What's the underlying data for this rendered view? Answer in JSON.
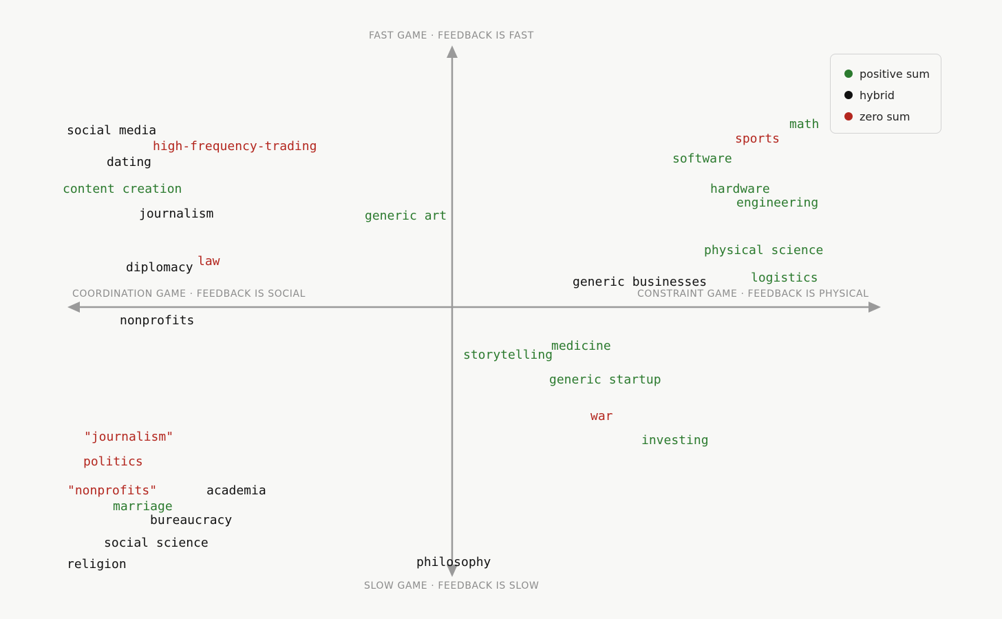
{
  "colors": {
    "positive": "#2b7a2e",
    "hybrid": "#111111",
    "zero": "#b3261e",
    "axis": "#9a9a9a"
  },
  "axes": {
    "top": "FAST GAME · FEEDBACK IS FAST",
    "bottom": "SLOW GAME · FEEDBACK IS SLOW",
    "left": "COORDINATION GAME · FEEDBACK IS SOCIAL",
    "right": "CONSTRAINT GAME · FEEDBACK IS PHYSICAL"
  },
  "legend": {
    "positive": "positive sum",
    "hybrid": "hybrid",
    "zero": "zero sum"
  },
  "chart_data": {
    "type": "scatter",
    "items": [
      {
        "label": "social media",
        "kind": "hybrid"
      },
      {
        "label": "high-frequency-trading",
        "kind": "zero"
      },
      {
        "label": "dating",
        "kind": "hybrid"
      },
      {
        "label": "content creation",
        "kind": "positive"
      },
      {
        "label": "journalism",
        "kind": "hybrid"
      },
      {
        "label": "diplomacy",
        "kind": "hybrid"
      },
      {
        "label": "law",
        "kind": "zero"
      },
      {
        "label": "nonprofits",
        "kind": "hybrid"
      },
      {
        "label": "generic art",
        "kind": "positive"
      },
      {
        "label": "math",
        "kind": "positive"
      },
      {
        "label": "sports",
        "kind": "zero"
      },
      {
        "label": "software",
        "kind": "positive"
      },
      {
        "label": "hardware",
        "kind": "positive"
      },
      {
        "label": "engineering",
        "kind": "positive"
      },
      {
        "label": "physical science",
        "kind": "positive"
      },
      {
        "label": "generic businesses",
        "kind": "hybrid"
      },
      {
        "label": "logistics",
        "kind": "positive"
      },
      {
        "label": "storytelling",
        "kind": "positive"
      },
      {
        "label": "medicine",
        "kind": "positive"
      },
      {
        "label": "generic startup",
        "kind": "positive"
      },
      {
        "label": "war",
        "kind": "zero"
      },
      {
        "label": "investing",
        "kind": "positive"
      },
      {
        "label": "\"journalism\"",
        "kind": "zero"
      },
      {
        "label": "politics",
        "kind": "zero"
      },
      {
        "label": "\"nonprofits\"",
        "kind": "zero"
      },
      {
        "label": "academia",
        "kind": "hybrid"
      },
      {
        "label": "marriage",
        "kind": "positive"
      },
      {
        "label": "bureaucracy",
        "kind": "hybrid"
      },
      {
        "label": "social science",
        "kind": "hybrid"
      },
      {
        "label": "religion",
        "kind": "hybrid"
      },
      {
        "label": "philosophy",
        "kind": "hybrid"
      }
    ]
  }
}
